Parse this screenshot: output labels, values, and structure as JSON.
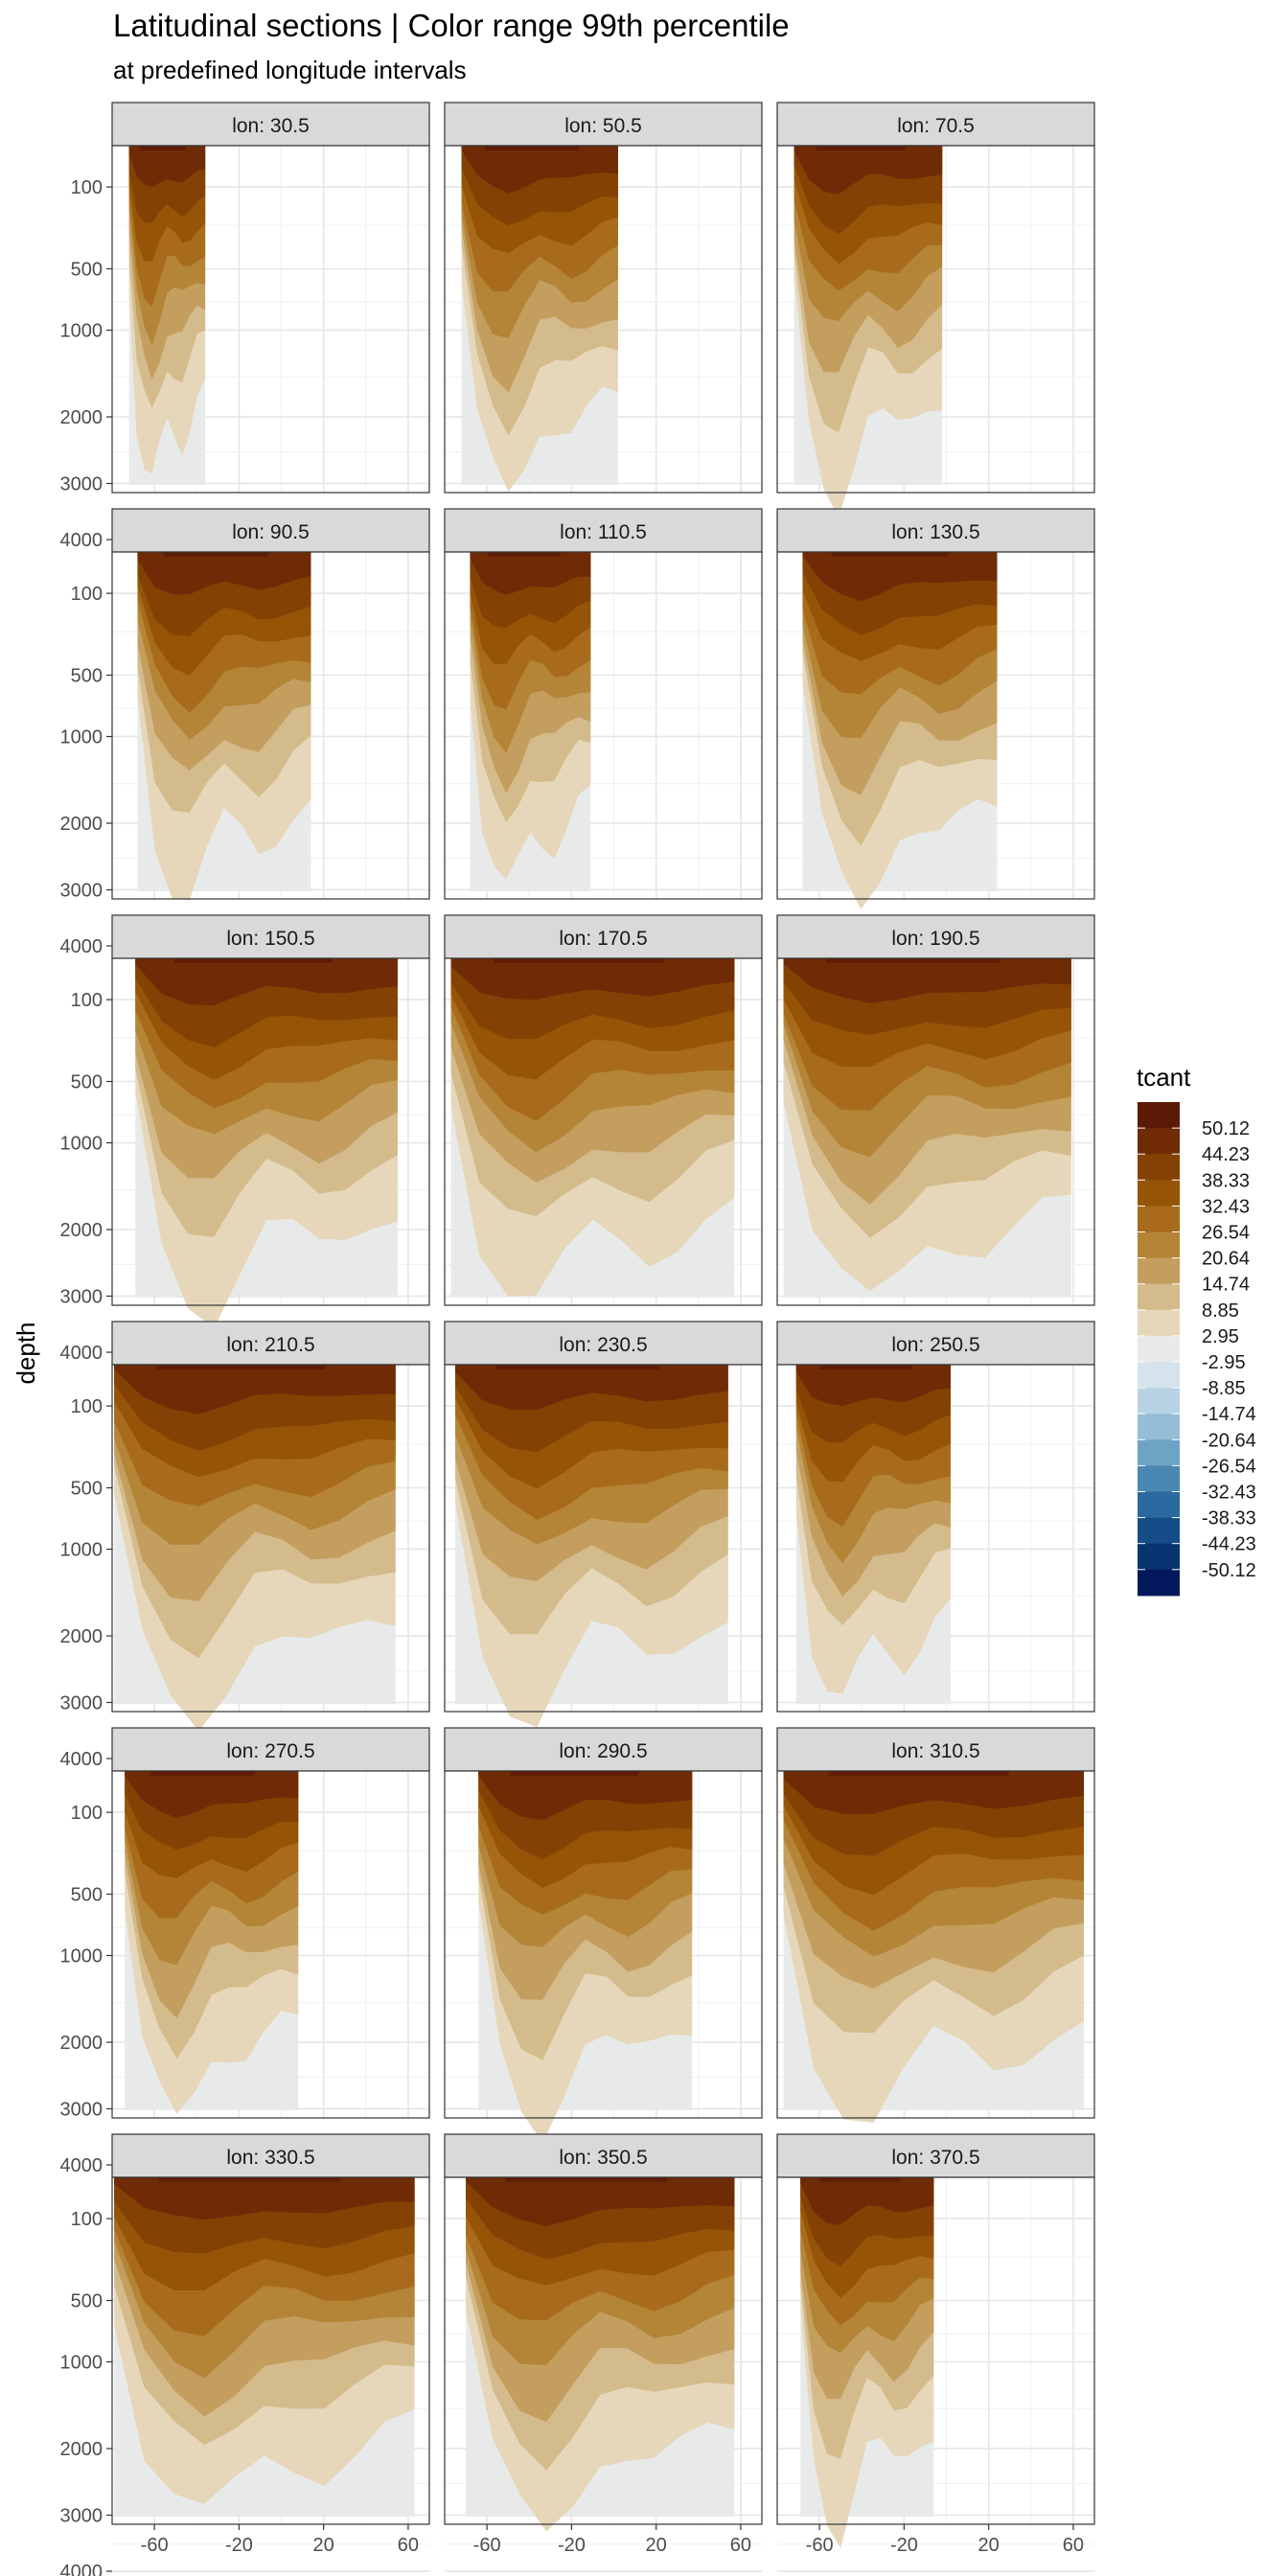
{
  "chart_data": {
    "type": "heatmap",
    "title": "Latitudinal sections | Color range 99th percentile",
    "subtitle": "at predefined longitude intervals",
    "ylabel": "depth",
    "xlabel": "",
    "x_ticks": [
      -60,
      -20,
      20,
      60
    ],
    "xlim": [
      -80,
      70
    ],
    "y_ticks": [
      100,
      500,
      1000,
      2000,
      3000,
      4000
    ],
    "y_reversed": true,
    "y_scale": "sqrt",
    "grid": true,
    "legend": {
      "title": "tcant",
      "position": "right",
      "labels": [
        "50.12",
        "44.23",
        "38.33",
        "32.43",
        "26.54",
        "20.64",
        "14.74",
        "8.85",
        "2.95",
        "-2.95",
        "-8.85",
        "-14.74",
        "-20.64",
        "-26.54",
        "-32.43",
        "-38.33",
        "-44.23",
        "-50.12"
      ],
      "colors": [
        "#5c1a06",
        "#6f2b05",
        "#844104",
        "#955406",
        "#a86b1b",
        "#b48437",
        "#c49e5e",
        "#d4bb8c",
        "#e6d7ba",
        "#e8eaea",
        "#d6e3ed",
        "#b8d3e3",
        "#96bdd6",
        "#6ea3c6",
        "#4a88b4",
        "#2a6aa0",
        "#154d88",
        "#083470",
        "#03185a"
      ]
    },
    "panels": [
      {
        "label": "lon: 30.5",
        "lat_range": [
          -72,
          -36
        ]
      },
      {
        "label": "lon: 50.5",
        "lat_range": [
          -72,
          2
        ]
      },
      {
        "label": "lon: 70.5",
        "lat_range": [
          -72,
          -2
        ]
      },
      {
        "label": "lon: 90.5",
        "lat_range": [
          -68,
          14
        ]
      },
      {
        "label": "lon: 110.5",
        "lat_range": [
          -68,
          -11
        ]
      },
      {
        "label": "lon: 130.5",
        "lat_range": [
          -68,
          24
        ]
      },
      {
        "label": "lon: 150.5",
        "lat_range": [
          -69,
          55
        ]
      },
      {
        "label": "lon: 170.5",
        "lat_range": [
          -77,
          57
        ]
      },
      {
        "label": "lon: 190.5",
        "lat_range": [
          -77,
          59
        ]
      },
      {
        "label": "lon: 210.5",
        "lat_range": [
          -79,
          54
        ]
      },
      {
        "label": "lon: 230.5",
        "lat_range": [
          -75,
          54
        ]
      },
      {
        "label": "lon: 250.5",
        "lat_range": [
          -71,
          2
        ]
      },
      {
        "label": "lon: 270.5",
        "lat_range": [
          -74,
          8
        ]
      },
      {
        "label": "lon: 290.5",
        "lat_range": [
          -64,
          37
        ]
      },
      {
        "label": "lon: 310.5",
        "lat_range": [
          -77,
          65
        ]
      },
      {
        "label": "lon: 330.5",
        "lat_range": [
          -79,
          63
        ]
      },
      {
        "label": "lon: 350.5",
        "lat_range": [
          -70,
          57
        ]
      },
      {
        "label": "lon: 370.5",
        "lat_range": [
          -69,
          -6
        ]
      }
    ]
  }
}
